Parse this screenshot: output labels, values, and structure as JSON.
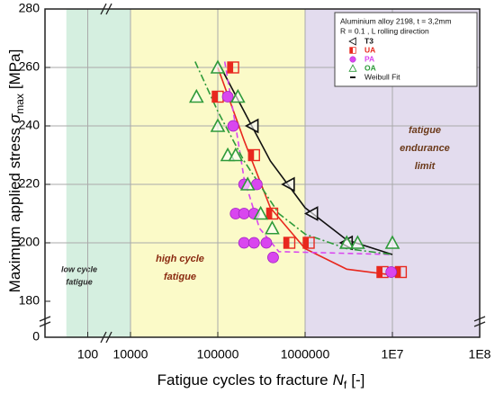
{
  "chart_data": {
    "type": "scatter",
    "xlabel": {
      "text": "Fatigue cycles to fracture",
      "symbol": "N",
      "sub": "f",
      "unit": "[-]"
    },
    "ylabel": {
      "text": "Maximum applied stress",
      "symbol": "σ",
      "sub": "max",
      "unit": "[MPa]"
    },
    "xscale": "log",
    "xlim": [
      1,
      100000000
    ],
    "xbreak": [
      100,
      10000
    ],
    "xticks": [
      100,
      10000,
      100000,
      1000000,
      {
        "value": 10000000,
        "label": "1E7"
      },
      {
        "value": 100000000,
        "label": "1E8"
      }
    ],
    "ylim": [
      0,
      280
    ],
    "ybreak": [
      0,
      180
    ],
    "yticks": [
      0,
      180,
      200,
      220,
      240,
      260,
      280
    ],
    "grid": true,
    "regions": [
      {
        "from": 10,
        "to": 10000,
        "color": "#d5efe0",
        "label": [
          "low cycle",
          "fatigue"
        ],
        "label_color": "#2a2a2a"
      },
      {
        "from": 10000,
        "to": 1000000,
        "color": "#fbfac8",
        "label": [
          "high cycle",
          "fatigue"
        ],
        "label_color": "#8a2a10"
      },
      {
        "from": 1000000,
        "to": 100000000,
        "color": "#e3dcee",
        "label": [
          "fatigue",
          "endurance",
          "limit"
        ],
        "label_color": "#6b3a1a"
      }
    ],
    "legend": {
      "title": [
        "Aluminium alloy 2198, t = 3,2mm",
        "R = 0.1 , L rolling direction"
      ],
      "position": "upper right"
    },
    "series": [
      {
        "name": "T3",
        "color": "#111111",
        "marker": "triangle-left",
        "x": [
          250000,
          650000,
          1200000,
          3000000
        ],
        "values": [
          240,
          220,
          210,
          200
        ]
      },
      {
        "name": "UA",
        "color": "#e8281e",
        "marker": "square",
        "x": [
          150000,
          100000,
          260000,
          420000,
          660000,
          1100000,
          7700000,
          12500000
        ],
        "values": [
          260,
          250,
          230,
          210,
          200,
          200,
          190,
          190
        ]
      },
      {
        "name": "PA",
        "color": "#d946ef",
        "marker": "circle",
        "x": [
          130000,
          150000,
          200000,
          280000,
          160000,
          200000,
          260000,
          200000,
          260000,
          360000,
          430000,
          9700000
        ],
        "values": [
          250,
          240,
          220,
          220,
          210,
          210,
          210,
          200,
          200,
          200,
          195,
          190
        ]
      },
      {
        "name": "OA",
        "color": "#2e9a3a",
        "marker": "triangle",
        "x": [
          100000,
          57000,
          170000,
          100000,
          130000,
          160000,
          220000,
          310000,
          420000,
          3000000,
          4000000,
          10000000
        ],
        "values": [
          260,
          250,
          250,
          240,
          230,
          230,
          220,
          210,
          205,
          200,
          200,
          200
        ]
      }
    ],
    "fit_name": "Weibull Fit",
    "fits": [
      {
        "color": "#111111",
        "dash": "none",
        "x": [
          100000,
          200000,
          400000,
          1000000,
          3000000,
          10000000
        ],
        "y": [
          262,
          245,
          228,
          212,
          201,
          196
        ]
      },
      {
        "color": "#e8281e",
        "dash": "none",
        "x": [
          100000,
          200000,
          400000,
          1000000,
          3000000,
          10000000
        ],
        "y": [
          260,
          235,
          212,
          198,
          191,
          189
        ]
      },
      {
        "color": "#d946ef",
        "dash": "6 4",
        "x": [
          120000,
          160000,
          200000,
          300000,
          500000,
          10000000
        ],
        "y": [
          262,
          240,
          222,
          205,
          197,
          196
        ]
      },
      {
        "color": "#2e9a3a",
        "dash": "8 3 2 3",
        "x": [
          55000,
          100000,
          200000,
          500000,
          1000000,
          3000000,
          10000000
        ],
        "y": [
          262,
          245,
          228,
          210,
          203,
          198,
          196
        ]
      }
    ]
  }
}
